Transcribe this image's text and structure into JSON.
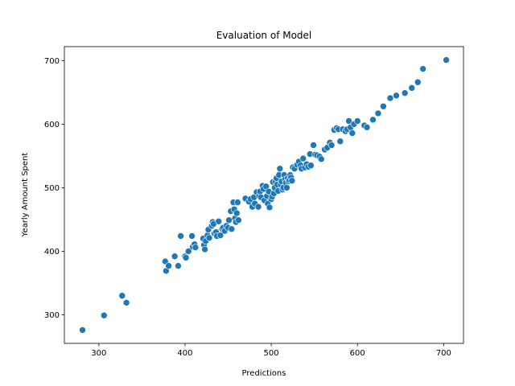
{
  "chart_data": {
    "type": "scatter",
    "title": "Evaluation of Model",
    "xlabel": "Predictions",
    "ylabel": "Yearly Amount Spent",
    "xlim": [
      260,
      723
    ],
    "ylim": [
      255,
      722
    ],
    "xticks": [
      300,
      400,
      500,
      600,
      700
    ],
    "yticks": [
      300,
      400,
      500,
      600,
      700
    ],
    "grid": false,
    "color": "#1f77b4",
    "points": [
      [
        281,
        276
      ],
      [
        306,
        299
      ],
      [
        327,
        330
      ],
      [
        332,
        319
      ],
      [
        377,
        384
      ],
      [
        378,
        369
      ],
      [
        381,
        377
      ],
      [
        388,
        392
      ],
      [
        392,
        377
      ],
      [
        395,
        424
      ],
      [
        400,
        392
      ],
      [
        401,
        390
      ],
      [
        404,
        400
      ],
      [
        408,
        424
      ],
      [
        409,
        407
      ],
      [
        411,
        411
      ],
      [
        412,
        406
      ],
      [
        421,
        420
      ],
      [
        422,
        410
      ],
      [
        423,
        403
      ],
      [
        424,
        416
      ],
      [
        426,
        425
      ],
      [
        427,
        434
      ],
      [
        428,
        421
      ],
      [
        431,
        440
      ],
      [
        432,
        446
      ],
      [
        433,
        443
      ],
      [
        434,
        428
      ],
      [
        436,
        430
      ],
      [
        437,
        424
      ],
      [
        439,
        447
      ],
      [
        441,
        425
      ],
      [
        443,
        435
      ],
      [
        444,
        437
      ],
      [
        446,
        432
      ],
      [
        448,
        440
      ],
      [
        450,
        437
      ],
      [
        451,
        449
      ],
      [
        453,
        463
      ],
      [
        454,
        435
      ],
      [
        456,
        477
      ],
      [
        457,
        466
      ],
      [
        458,
        452
      ],
      [
        459,
        446
      ],
      [
        460,
        460
      ],
      [
        461,
        477
      ],
      [
        462,
        449
      ],
      [
        470,
        483
      ],
      [
        474,
        478
      ],
      [
        476,
        482
      ],
      [
        478,
        470
      ],
      [
        480,
        485
      ],
      [
        481,
        475
      ],
      [
        483,
        493
      ],
      [
        485,
        470
      ],
      [
        486,
        487
      ],
      [
        487,
        494
      ],
      [
        488,
        485
      ],
      [
        490,
        503
      ],
      [
        491,
        498
      ],
      [
        492,
        480
      ],
      [
        494,
        502
      ],
      [
        495,
        487
      ],
      [
        496,
        475
      ],
      [
        497,
        494
      ],
      [
        498,
        469
      ],
      [
        500,
        482
      ],
      [
        501,
        486
      ],
      [
        502,
        509
      ],
      [
        503,
        491
      ],
      [
        504,
        500
      ],
      [
        505,
        510
      ],
      [
        506,
        515
      ],
      [
        507,
        505
      ],
      [
        508,
        495
      ],
      [
        509,
        520
      ],
      [
        510,
        530
      ],
      [
        511,
        505
      ],
      [
        512,
        510
      ],
      [
        513,
        497
      ],
      [
        514,
        500
      ],
      [
        515,
        520
      ],
      [
        516,
        513
      ],
      [
        517,
        508
      ],
      [
        518,
        500
      ],
      [
        519,
        515
      ],
      [
        520,
        510
      ],
      [
        521,
        512
      ],
      [
        522,
        520
      ],
      [
        523,
        516
      ],
      [
        524,
        511
      ],
      [
        525,
        532
      ],
      [
        527,
        530
      ],
      [
        530,
        536
      ],
      [
        532,
        541
      ],
      [
        534,
        535
      ],
      [
        535,
        530
      ],
      [
        537,
        546
      ],
      [
        539,
        532
      ],
      [
        541,
        537
      ],
      [
        543,
        533
      ],
      [
        545,
        553
      ],
      [
        546,
        535
      ],
      [
        549,
        567
      ],
      [
        551,
        552
      ],
      [
        553,
        551
      ],
      [
        556,
        549
      ],
      [
        558,
        545
      ],
      [
        562,
        560
      ],
      [
        565,
        563
      ],
      [
        568,
        571
      ],
      [
        570,
        567
      ],
      [
        573,
        591
      ],
      [
        576,
        594
      ],
      [
        578,
        592
      ],
      [
        580,
        573
      ],
      [
        583,
        592
      ],
      [
        586,
        589
      ],
      [
        588,
        592
      ],
      [
        590,
        605
      ],
      [
        592,
        595
      ],
      [
        594,
        586
      ],
      [
        596,
        600
      ],
      [
        600,
        605
      ],
      [
        608,
        598
      ],
      [
        611,
        595
      ],
      [
        618,
        607
      ],
      [
        624,
        617
      ],
      [
        630,
        628
      ],
      [
        638,
        641
      ],
      [
        645,
        645
      ],
      [
        655,
        649
      ],
      [
        663,
        657
      ],
      [
        670,
        666
      ],
      [
        676,
        687
      ],
      [
        703,
        701
      ]
    ]
  }
}
